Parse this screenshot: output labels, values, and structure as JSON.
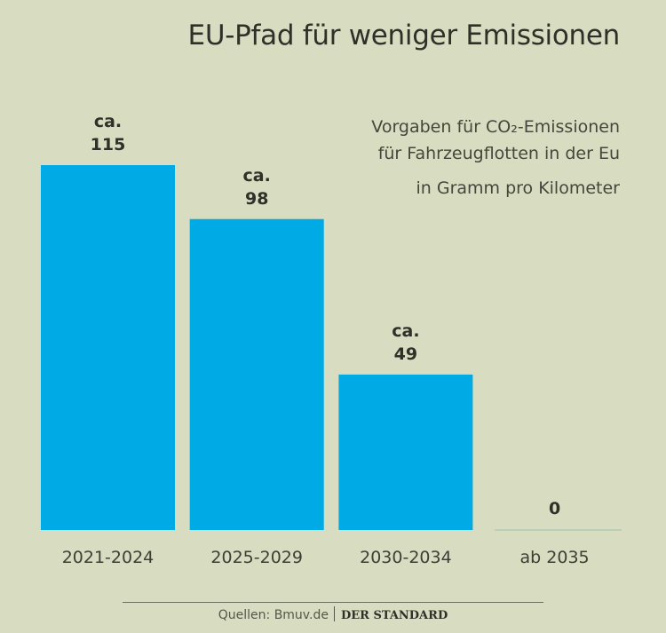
{
  "chart_data": {
    "type": "bar",
    "title": "EU-Pfad für weniger Emissionen",
    "subtitle_lines": [
      "Vorgaben für CO₂-Emissionen",
      "für Fahrzeugflotten in der Eu"
    ],
    "unit": "in Gramm pro Kilometer",
    "categories": [
      "2021-2024",
      "2025-2029",
      "2030-2034",
      "ab 2035"
    ],
    "values": [
      115,
      98,
      49,
      0
    ],
    "value_labels": [
      {
        "prefix": "ca.",
        "value": "115"
      },
      {
        "prefix": "ca.",
        "value": "98"
      },
      {
        "prefix": "ca.",
        "value": "49"
      },
      {
        "prefix": "",
        "value": "0"
      }
    ],
    "xlabel": "",
    "ylabel": "",
    "ylim": [
      0,
      115
    ],
    "grid": false,
    "bar_color": "#00aae4",
    "legend": "none"
  },
  "footer": {
    "source": "Quellen: Bmuv.de",
    "brand": "DER STANDARD"
  }
}
